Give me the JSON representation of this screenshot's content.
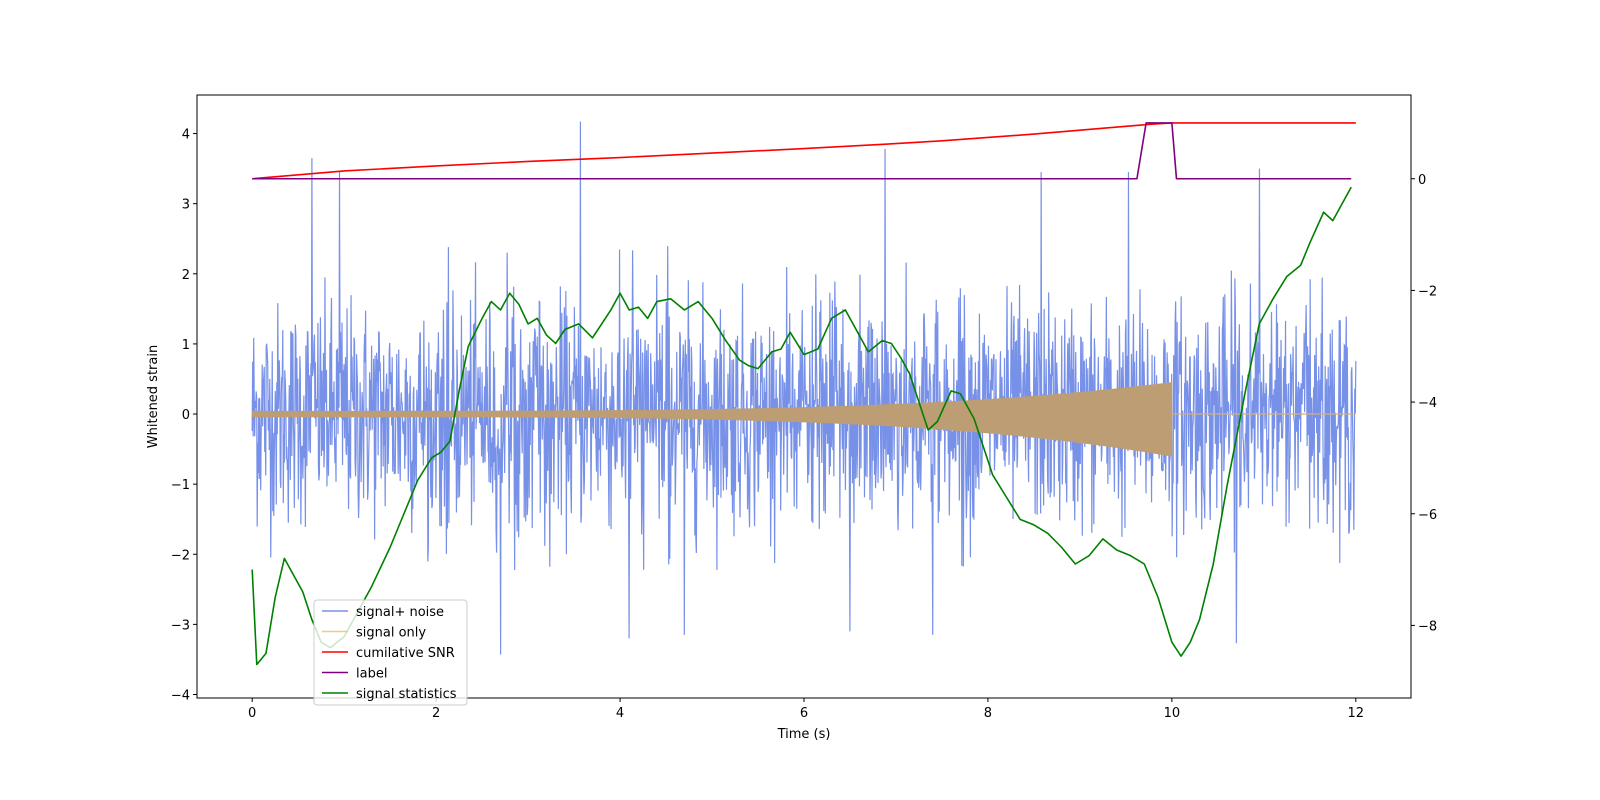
{
  "chart_data": {
    "type": "line",
    "title": "",
    "xlabel": "Time (s)",
    "ylabel": "Whitened strain",
    "y2label": "",
    "xlim": [
      -0.6,
      12.6
    ],
    "ylim": [
      -4.05,
      4.55
    ],
    "y2lim": [
      -9.3,
      1.5
    ],
    "xticks": [
      0,
      2,
      4,
      6,
      8,
      10,
      12
    ],
    "xtick_labels": [
      "0",
      "2",
      "4",
      "6",
      "8",
      "10",
      "12"
    ],
    "yticks": [
      -4,
      -3,
      -2,
      -1,
      0,
      1,
      2,
      3,
      4
    ],
    "ytick_labels": [
      "−4",
      "−3",
      "−2",
      "−1",
      "0",
      "1",
      "2",
      "3",
      "4"
    ],
    "y2ticks": [
      -8,
      -6,
      -4,
      -2,
      0
    ],
    "y2tick_labels": [
      "−8",
      "−6",
      "−4",
      "−2",
      "0"
    ],
    "grid": false,
    "legend_position": "lower-left",
    "series": [
      {
        "name": "signal+ noise",
        "axis": "left",
        "color": "#7790e8",
        "kind": "noise",
        "x_range": [
          0,
          12
        ],
        "typical_range": [
          -2.0,
          2.4
        ],
        "extremes": [
          {
            "x": 0.65,
            "y": 3.65
          },
          {
            "x": 0.95,
            "y": 3.45
          },
          {
            "x": 3.57,
            "y": 4.17
          },
          {
            "x": 6.88,
            "y": 3.78
          },
          {
            "x": 8.58,
            "y": 3.45
          },
          {
            "x": 9.53,
            "y": 3.45
          },
          {
            "x": 10.95,
            "y": 3.5
          },
          {
            "x": 2.7,
            "y": -3.43
          },
          {
            "x": 4.1,
            "y": -3.2
          },
          {
            "x": 10.7,
            "y": -3.27
          },
          {
            "x": 4.7,
            "y": -3.15
          },
          {
            "x": 6.5,
            "y": -3.1
          },
          {
            "x": 7.4,
            "y": -3.15
          }
        ]
      },
      {
        "name": "signal only",
        "axis": "left",
        "color": "#f5c97a",
        "kind": "chirp",
        "x_range": [
          0,
          12
        ],
        "merger_time": 10.0,
        "amplitude_start": 0.04,
        "amplitude_peak_upper": 0.45,
        "amplitude_peak_lower": -0.6
      },
      {
        "name": "cumilative SNR",
        "axis": "right",
        "color": "#ff0000",
        "x": [
          0,
          1,
          2,
          3,
          4,
          5,
          6,
          7,
          7.5,
          8,
          8.5,
          9,
          9.5,
          9.8,
          10.0,
          10.5,
          11,
          12
        ],
        "values": [
          0,
          0.14,
          0.23,
          0.31,
          0.38,
          0.46,
          0.54,
          0.63,
          0.68,
          0.74,
          0.8,
          0.87,
          0.94,
          0.98,
          1.0,
          1.0,
          1.0,
          1.0
        ]
      },
      {
        "name": "label",
        "axis": "right",
        "color": "#800080",
        "x": [
          0,
          9.62,
          9.72,
          10.0,
          10.05,
          11.95
        ],
        "values": [
          0,
          0,
          1,
          1,
          0,
          0
        ]
      },
      {
        "name": "signal statistics",
        "axis": "right",
        "color": "#008000",
        "x": [
          0,
          0.05,
          0.15,
          0.25,
          0.35,
          0.45,
          0.55,
          0.65,
          0.75,
          0.85,
          1.0,
          1.1,
          1.3,
          1.5,
          1.65,
          1.8,
          1.95,
          2.05,
          2.15,
          2.25,
          2.35,
          2.5,
          2.6,
          2.7,
          2.8,
          2.9,
          3.0,
          3.1,
          3.2,
          3.3,
          3.4,
          3.55,
          3.7,
          3.8,
          3.9,
          4.0,
          4.1,
          4.2,
          4.3,
          4.4,
          4.55,
          4.7,
          4.85,
          5.0,
          5.15,
          5.3,
          5.4,
          5.5,
          5.65,
          5.75,
          5.85,
          6.0,
          6.15,
          6.3,
          6.45,
          6.55,
          6.7,
          6.85,
          6.95,
          7.05,
          7.15,
          7.25,
          7.35,
          7.45,
          7.6,
          7.7,
          7.85,
          7.95,
          8.05,
          8.2,
          8.35,
          8.5,
          8.65,
          8.8,
          8.95,
          9.1,
          9.25,
          9.4,
          9.55,
          9.7,
          9.85,
          10.0,
          10.1,
          10.2,
          10.3,
          10.45,
          10.6,
          10.8,
          10.95,
          11.1,
          11.25,
          11.4,
          11.5,
          11.65,
          11.75,
          11.85,
          11.95
        ],
        "values": [
          -7.0,
          -8.7,
          -8.5,
          -7.5,
          -6.8,
          -7.1,
          -7.4,
          -7.9,
          -8.3,
          -8.4,
          -8.2,
          -7.9,
          -7.3,
          -6.6,
          -6.0,
          -5.4,
          -5.0,
          -4.9,
          -4.7,
          -3.8,
          -3.0,
          -2.5,
          -2.2,
          -2.35,
          -2.05,
          -2.25,
          -2.6,
          -2.5,
          -2.8,
          -2.95,
          -2.7,
          -2.6,
          -2.85,
          -2.6,
          -2.35,
          -2.05,
          -2.35,
          -2.3,
          -2.5,
          -2.2,
          -2.15,
          -2.35,
          -2.2,
          -2.5,
          -2.9,
          -3.25,
          -3.35,
          -3.4,
          -3.1,
          -3.05,
          -2.75,
          -3.15,
          -3.05,
          -2.5,
          -2.35,
          -2.65,
          -3.1,
          -2.9,
          -2.95,
          -3.2,
          -3.5,
          -4.0,
          -4.5,
          -4.35,
          -3.8,
          -3.85,
          -4.3,
          -4.8,
          -5.3,
          -5.7,
          -6.1,
          -6.2,
          -6.35,
          -6.6,
          -6.9,
          -6.75,
          -6.45,
          -6.65,
          -6.75,
          -6.9,
          -7.5,
          -8.3,
          -8.55,
          -8.3,
          -7.9,
          -6.9,
          -5.5,
          -3.8,
          -2.6,
          -2.15,
          -1.75,
          -1.55,
          -1.15,
          -0.6,
          -0.75,
          -0.45,
          -0.15
        ]
      }
    ]
  }
}
